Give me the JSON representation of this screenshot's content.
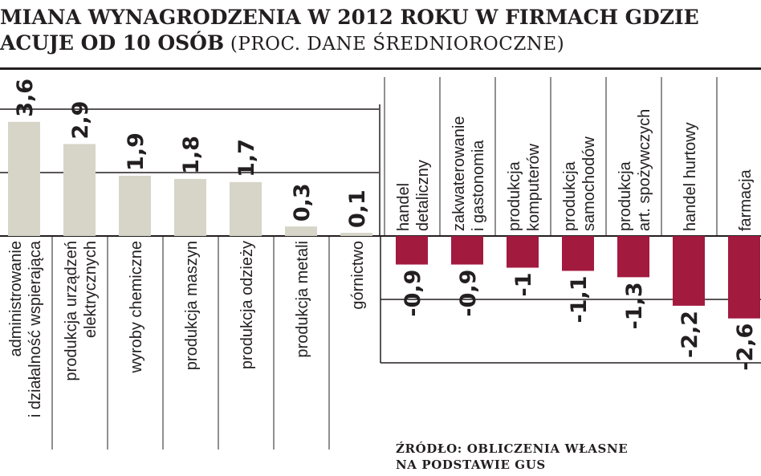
{
  "title": {
    "line1": "MIANA WYNAGRODZENIA W 2012 ROKU W FIRMACH GDZIE",
    "line2_bold": "ACUJE OD 10 OSÓB",
    "line2_sub": " (PROC. DANE ŚREDNIOROCZNE)"
  },
  "source": {
    "line1": "ŹRÓDŁO: OBLICZENIA WŁASNE",
    "line2": "NA PODSTAWIE GUS"
  },
  "colors": {
    "positive": "#d6d5c8",
    "negative": "#a31a3f",
    "text": "#231f20",
    "axis": "#231f20"
  },
  "chart_data": {
    "type": "bar",
    "categories": [
      [
        "administrowanie",
        "i działalność wspierająca"
      ],
      [
        "produkcja urządzeń",
        "elektrycznych"
      ],
      [
        "wyroby chemiczne"
      ],
      [
        "produkcja maszyn"
      ],
      [
        "produkcja odzieży"
      ],
      [
        "produkcja metali"
      ],
      [
        "górnictwo"
      ],
      [
        "handel",
        "detaliczny"
      ],
      [
        "zakwaterowanie",
        "i gastonomia"
      ],
      [
        "produkcja",
        "komputerów"
      ],
      [
        "produkcja",
        "samochodów"
      ],
      [
        "produkcja",
        "art. spożywczych"
      ],
      [
        "handel hurtowy"
      ],
      [
        "farmacja"
      ]
    ],
    "values": [
      3.6,
      2.9,
      1.9,
      1.8,
      1.7,
      0.3,
      0.1,
      -0.9,
      -0.9,
      -1,
      -1.1,
      -1.3,
      -2.2,
      -2.6
    ],
    "value_labels": [
      "3,6",
      "2,9",
      "1,9",
      "1,8",
      "1,7",
      "0,3",
      "0,1",
      "-0,9",
      "-0,9",
      "-1",
      "-1,1",
      "-1,3",
      "-2,2",
      "-2,6"
    ],
    "gridlines": [
      -4,
      -2,
      2,
      4
    ],
    "ylim": [
      -4,
      4.5
    ]
  }
}
